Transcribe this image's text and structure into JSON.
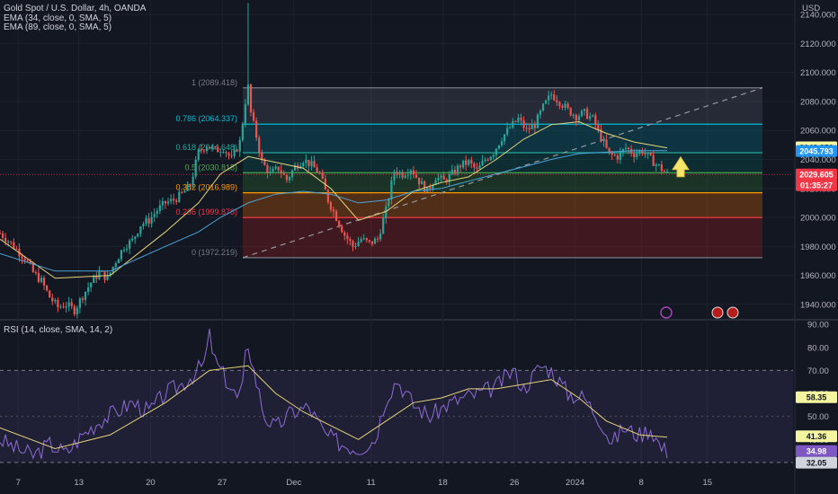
{
  "header": {
    "title": "Gold Spot / U.S. Dollar, 4h, OANDA",
    "ema34": "EMA (34, close, 0, SMA, 5)",
    "ema89": "EMA (89, close, 0, SMA, 5)",
    "rsi": "RSI (14, close, SMA, 14, 2)",
    "currency": "USD"
  },
  "chart_data": [
    {
      "type": "candlestick",
      "title": "Gold Spot / U.S. Dollar, 4h, OANDA",
      "ylim": [
        1930,
        2150
      ],
      "y_ticks": [
        "2140.000",
        "2120.000",
        "2100.000",
        "2080.000",
        "2060.000",
        "2040.000",
        "2020.000",
        "2000.000",
        "1980.000",
        "1960.000",
        "1940.000"
      ],
      "x_ticks": [
        "7",
        "13",
        "20",
        "27",
        "Dec",
        "11",
        "18",
        "26",
        "2024",
        "8",
        "15"
      ],
      "price_path": [
        [
          0,
          1989
        ],
        [
          3,
          1984
        ],
        [
          6,
          1978
        ],
        [
          9,
          1972
        ],
        [
          12,
          1962
        ],
        [
          15,
          1956
        ],
        [
          18,
          1945
        ],
        [
          21,
          1938
        ],
        [
          24,
          1940
        ],
        [
          27,
          1936
        ],
        [
          30,
          1946
        ],
        [
          33,
          1955
        ],
        [
          36,
          1962
        ],
        [
          39,
          1958
        ],
        [
          42,
          1970
        ],
        [
          45,
          1980
        ],
        [
          48,
          1984
        ],
        [
          51,
          1995
        ],
        [
          54,
          1998
        ],
        [
          57,
          2005
        ],
        [
          60,
          2010
        ],
        [
          63,
          2012
        ],
        [
          66,
          2016
        ],
        [
          69,
          2022
        ],
        [
          72,
          2045
        ],
        [
          75,
          2050
        ],
        [
          78,
          2046
        ],
        [
          81,
          2048
        ],
        [
          84,
          2040
        ],
        [
          87,
          2052
        ],
        [
          89,
          2080
        ],
        [
          90,
          2090
        ],
        [
          91,
          2072
        ],
        [
          93,
          2056
        ],
        [
          95,
          2038
        ],
        [
          98,
          2030
        ],
        [
          101,
          2034
        ],
        [
          104,
          2026
        ],
        [
          107,
          2035
        ],
        [
          110,
          2040
        ],
        [
          113,
          2036
        ],
        [
          116,
          2030
        ],
        [
          119,
          2012
        ],
        [
          122,
          2000
        ],
        [
          125,
          1988
        ],
        [
          128,
          1980
        ],
        [
          131,
          1985
        ],
        [
          134,
          1982
        ],
        [
          137,
          1985
        ],
        [
          140,
          2005
        ],
        [
          143,
          2032
        ],
        [
          146,
          2030
        ],
        [
          149,
          2034
        ],
        [
          152,
          2025
        ],
        [
          155,
          2018
        ],
        [
          158,
          2028
        ],
        [
          161,
          2025
        ],
        [
          164,
          2030
        ],
        [
          167,
          2036
        ],
        [
          170,
          2038
        ],
        [
          173,
          2032
        ],
        [
          176,
          2040
        ],
        [
          179,
          2045
        ],
        [
          182,
          2055
        ],
        [
          185,
          2062
        ],
        [
          188,
          2068
        ],
        [
          191,
          2060
        ],
        [
          194,
          2064
        ],
        [
          197,
          2076
        ],
        [
          200,
          2085
        ],
        [
          203,
          2080
        ],
        [
          206,
          2074
        ],
        [
          209,
          2070
        ],
        [
          212,
          2072
        ],
        [
          215,
          2068
        ],
        [
          218,
          2055
        ],
        [
          221,
          2043
        ],
        [
          224,
          2042
        ],
        [
          227,
          2048
        ],
        [
          230,
          2044
        ],
        [
          233,
          2046
        ],
        [
          236,
          2040
        ],
        [
          239,
          2035
        ],
        [
          242,
          2030
        ]
      ],
      "spike": {
        "index": 90,
        "high": 2148
      },
      "ema34_path": [
        [
          0,
          1985
        ],
        [
          20,
          1958
        ],
        [
          40,
          1960
        ],
        [
          60,
          1990
        ],
        [
          72,
          2010
        ],
        [
          80,
          2030
        ],
        [
          90,
          2042
        ],
        [
          100,
          2038
        ],
        [
          110,
          2034
        ],
        [
          120,
          2020
        ],
        [
          130,
          1998
        ],
        [
          140,
          2004
        ],
        [
          150,
          2018
        ],
        [
          160,
          2024
        ],
        [
          170,
          2028
        ],
        [
          180,
          2040
        ],
        [
          190,
          2054
        ],
        [
          200,
          2064
        ],
        [
          210,
          2066
        ],
        [
          220,
          2058
        ],
        [
          230,
          2052
        ],
        [
          242,
          2048
        ]
      ],
      "ema89_path": [
        [
          0,
          1975
        ],
        [
          20,
          1963
        ],
        [
          40,
          1963
        ],
        [
          60,
          1980
        ],
        [
          72,
          1990
        ],
        [
          80,
          2000
        ],
        [
          90,
          2010
        ],
        [
          100,
          2016
        ],
        [
          110,
          2018
        ],
        [
          120,
          2016
        ],
        [
          130,
          2010
        ],
        [
          140,
          2012
        ],
        [
          150,
          2018
        ],
        [
          160,
          2020
        ],
        [
          170,
          2025
        ],
        [
          180,
          2030
        ],
        [
          190,
          2035
        ],
        [
          200,
          2040
        ],
        [
          210,
          2044
        ],
        [
          220,
          2045
        ],
        [
          230,
          2046
        ],
        [
          242,
          2046
        ]
      ],
      "fib_levels": [
        {
          "label": "1 (2089.418)",
          "value": 2089.418,
          "color": "#787b86"
        },
        {
          "label": "0.786 (2064.337)",
          "value": 2064.337,
          "color": "#00bcd4"
        },
        {
          "label": "0.618 (2044.648)",
          "value": 2044.648,
          "color": "#26a69a"
        },
        {
          "label": "0.5 (2030.818)",
          "value": 2030.818,
          "color": "#4caf50"
        },
        {
          "label": "0.382 (2016.989)",
          "value": 2016.989,
          "color": "#ff9800"
        },
        {
          "label": "0.236 (1999.878)",
          "value": 1999.878,
          "color": "#f23645"
        },
        {
          "label": "0 (1972.219)",
          "value": 1972.219,
          "color": "#787b86"
        }
      ],
      "price_badges": [
        {
          "text": "2048.352",
          "value": 2048.352,
          "bg": "#f5f5a0",
          "fg": "#131722"
        },
        {
          "text": "2045.793",
          "value": 2045.793,
          "bg": "#2196f3",
          "fg": "#ffffff"
        },
        {
          "text": "2029.605",
          "value": 2029.605,
          "bg": "#f23645",
          "fg": "#ffffff"
        },
        {
          "text": "01:35:27",
          "value": 2024.5,
          "bg": "#f23645",
          "fg": "#ffffff"
        }
      ]
    },
    {
      "type": "line",
      "title": "RSI (14, close, SMA, 14, 2)",
      "ylim": [
        28,
        92
      ],
      "y_ticks": [
        "90.00",
        "80.00",
        "70.00",
        "60.00",
        "50.00",
        "40.00",
        "30.00"
      ],
      "band": [
        30,
        70
      ],
      "rsi_path": [
        [
          0,
          40
        ],
        [
          6,
          36
        ],
        [
          12,
          33
        ],
        [
          18,
          38
        ],
        [
          24,
          34
        ],
        [
          30,
          42
        ],
        [
          36,
          48
        ],
        [
          42,
          52
        ],
        [
          48,
          56
        ],
        [
          54,
          52
        ],
        [
          60,
          60
        ],
        [
          66,
          64
        ],
        [
          70,
          68
        ],
        [
          74,
          73
        ],
        [
          76,
          85
        ],
        [
          78,
          74
        ],
        [
          82,
          66
        ],
        [
          86,
          58
        ],
        [
          88,
          62
        ],
        [
          89,
          76
        ],
        [
          90,
          82
        ],
        [
          92,
          70
        ],
        [
          96,
          50
        ],
        [
          100,
          45
        ],
        [
          106,
          52
        ],
        [
          112,
          54
        ],
        [
          118,
          42
        ],
        [
          124,
          38
        ],
        [
          130,
          36
        ],
        [
          136,
          40
        ],
        [
          140,
          58
        ],
        [
          144,
          66
        ],
        [
          150,
          55
        ],
        [
          156,
          50
        ],
        [
          162,
          55
        ],
        [
          168,
          58
        ],
        [
          174,
          60
        ],
        [
          180,
          63
        ],
        [
          186,
          70
        ],
        [
          190,
          62
        ],
        [
          196,
          72
        ],
        [
          200,
          70
        ],
        [
          206,
          60
        ],
        [
          212,
          58
        ],
        [
          218,
          48
        ],
        [
          222,
          38
        ],
        [
          226,
          45
        ],
        [
          232,
          42
        ],
        [
          236,
          45
        ],
        [
          240,
          36
        ],
        [
          242,
          35
        ]
      ],
      "rsi_ma_path": [
        [
          0,
          45
        ],
        [
          20,
          36
        ],
        [
          40,
          42
        ],
        [
          60,
          56
        ],
        [
          76,
          70
        ],
        [
          90,
          72
        ],
        [
          100,
          60
        ],
        [
          110,
          52
        ],
        [
          120,
          46
        ],
        [
          130,
          40
        ],
        [
          140,
          48
        ],
        [
          150,
          56
        ],
        [
          160,
          58
        ],
        [
          170,
          62
        ],
        [
          180,
          62
        ],
        [
          190,
          64
        ],
        [
          200,
          66
        ],
        [
          210,
          58
        ],
        [
          220,
          48
        ],
        [
          232,
          42
        ],
        [
          242,
          41
        ]
      ],
      "badges": [
        {
          "text": "58.35",
          "value": 58.35,
          "bg": "#f5f5a0",
          "fg": "#131722"
        },
        {
          "text": "41.36",
          "value": 41.36,
          "bg": "#f5f5a0",
          "fg": "#131722"
        },
        {
          "text": "34.98",
          "value": 34.98,
          "bg": "#7e57c2",
          "fg": "#ffffff"
        },
        {
          "text": "32.05",
          "value": 32.05,
          "bg": "#d1d4dc",
          "fg": "#131722"
        }
      ]
    }
  ]
}
